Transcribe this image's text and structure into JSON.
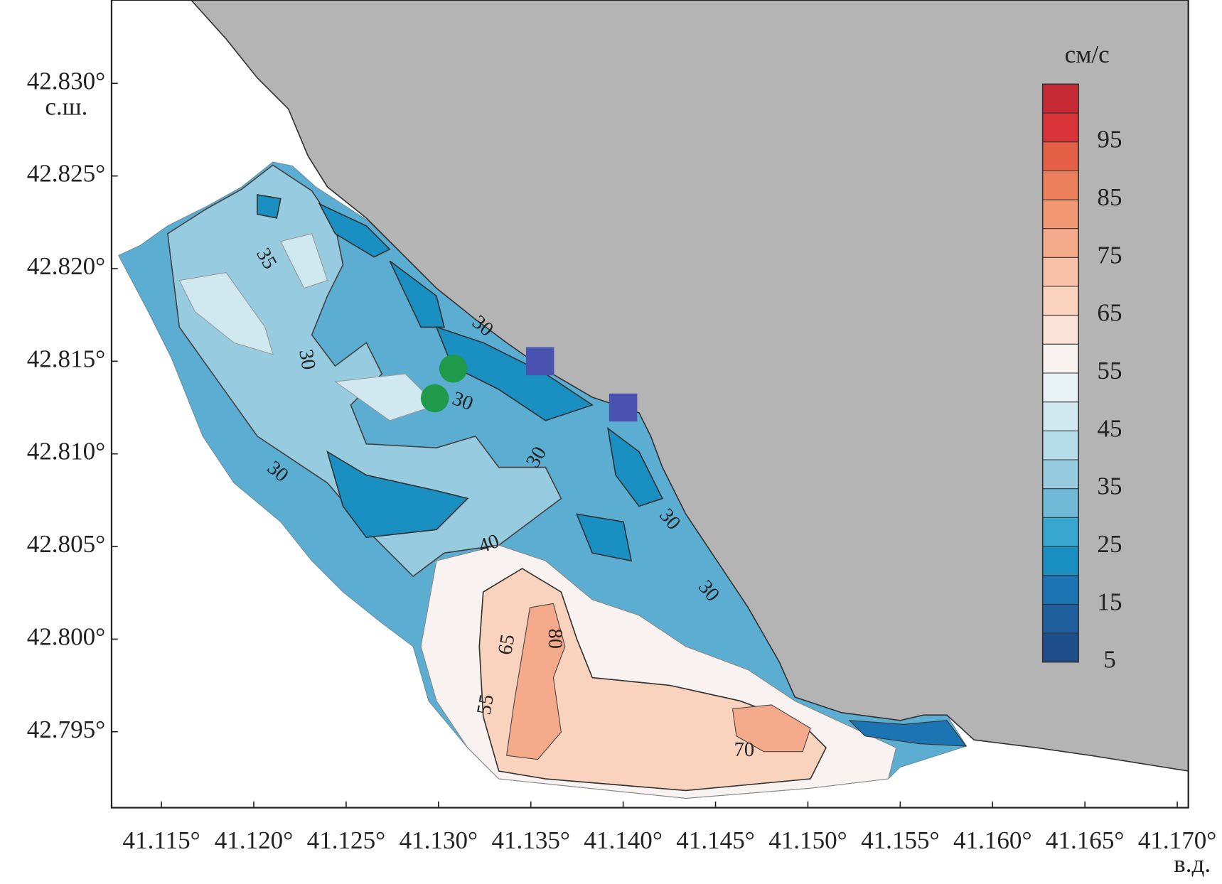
{
  "chart_data": {
    "type": "contour",
    "xlabel": "в.д.",
    "ylabel": "с.ш.",
    "xlim": [
      41.1123,
      41.1706
    ],
    "ylim": [
      42.7909,
      42.8345
    ],
    "xticks": [
      {
        "value": 41.115,
        "label": "41.115°"
      },
      {
        "value": 41.12,
        "label": "41.120°"
      },
      {
        "value": 41.125,
        "label": "41.125°"
      },
      {
        "value": 41.13,
        "label": "41.130°"
      },
      {
        "value": 41.135,
        "label": "41.135°"
      },
      {
        "value": 41.14,
        "label": "41.140°"
      },
      {
        "value": 41.145,
        "label": "41.145°"
      },
      {
        "value": 41.15,
        "label": "41.150°"
      },
      {
        "value": 41.155,
        "label": "41.155°"
      },
      {
        "value": 41.16,
        "label": "41.160°"
      },
      {
        "value": 41.165,
        "label": "41.165°"
      },
      {
        "value": 41.17,
        "label": "41.170°"
      }
    ],
    "yticks": [
      {
        "value": 42.795,
        "label": "42.795°"
      },
      {
        "value": 42.8,
        "label": "42.800°"
      },
      {
        "value": 42.805,
        "label": "42.805°"
      },
      {
        "value": 42.81,
        "label": "42.810°"
      },
      {
        "value": 42.815,
        "label": "42.815°"
      },
      {
        "value": 42.82,
        "label": "42.820°"
      },
      {
        "value": 42.825,
        "label": "42.825°"
      },
      {
        "value": 42.83,
        "label": "42.830°"
      }
    ],
    "contour_labels": [
      35,
      30,
      30,
      30,
      30,
      30,
      30,
      30,
      40,
      65,
      80,
      55,
      70
    ],
    "markers": [
      {
        "shape": "circle",
        "color": "#1f9a4a",
        "x": [
          41.1308,
          41.1298
        ],
        "y": [
          42.8146,
          42.813
        ]
      },
      {
        "shape": "square",
        "color": "#4a52b0",
        "x": [
          41.1355,
          41.14
        ],
        "y": [
          42.815,
          42.8125
        ]
      }
    ],
    "colorbar": {
      "title": "см/с",
      "levels": [
        5,
        10,
        15,
        20,
        25,
        30,
        35,
        40,
        45,
        50,
        55,
        60,
        65,
        70,
        75,
        80,
        85,
        90,
        95,
        100,
        105
      ],
      "colors": [
        "#1f4e8c",
        "#1f5f9e",
        "#1c75b2",
        "#1a8fc2",
        "#37a6d0",
        "#6fb8d6",
        "#96cbe0",
        "#b6dbe9",
        "#d0e8f0",
        "#e9f3f6",
        "#f8f3f1",
        "#fbe3d7",
        "#fad3bf",
        "#f8c0a6",
        "#f5ab8b",
        "#f19774",
        "#ec7f5c",
        "#e35f45",
        "#d9333a",
        "#c62a35"
      ],
      "ticks": [
        5,
        15,
        25,
        35,
        45,
        55,
        65,
        75,
        85,
        95
      ]
    }
  }
}
